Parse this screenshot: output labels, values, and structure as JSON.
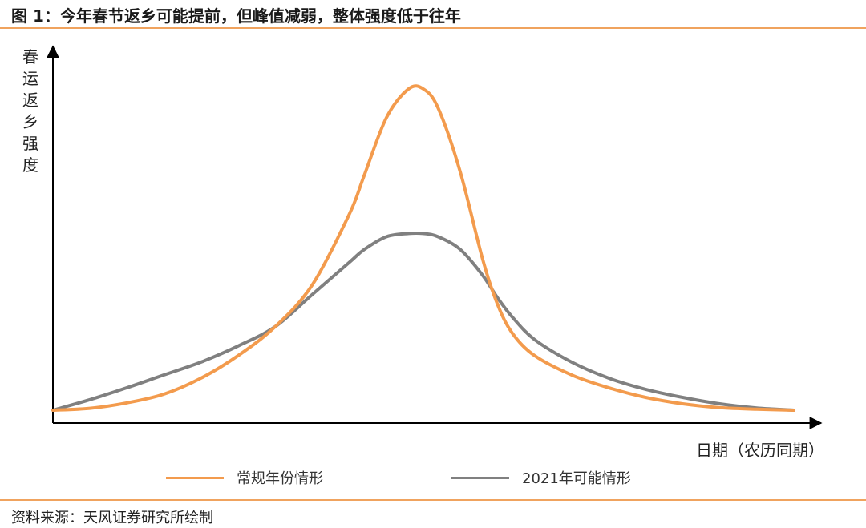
{
  "figure": {
    "title": "图 1：今年春节返乡可能提前，但峰值减弱，整体强度低于往年",
    "source": "资料来源：天风证券研究所绘制"
  },
  "colors": {
    "accent_rule": "#f0a35e",
    "series_normal": "#f39b4d",
    "series_2021": "#808080"
  },
  "chart_data": {
    "type": "line",
    "title": "",
    "xlabel": "日期（农历同期）",
    "ylabel": "春运返乡强度",
    "grid": false,
    "ticks": false,
    "legend": "bottom",
    "xlim": [
      0,
      100
    ],
    "ylim": [
      0,
      100
    ],
    "series": [
      {
        "name": "常规年份情形",
        "color": "#f39b4d",
        "x": [
          0,
          5,
          10,
          15,
          20,
          25,
          30,
          35,
          40,
          42,
          45,
          48,
          50,
          52,
          55,
          58,
          60,
          62,
          65,
          70,
          75,
          80,
          85,
          90,
          95,
          100
        ],
        "y": [
          0,
          0.6,
          2.3,
          5,
          10,
          17,
          26,
          39,
          61,
          73,
          91,
          100,
          100,
          94,
          74,
          47,
          33,
          24,
          17,
          11,
          7,
          4,
          2,
          0.8,
          0.3,
          0
        ]
      },
      {
        "name": "2021年可能情形",
        "color": "#808080",
        "x": [
          0,
          5,
          10,
          15,
          20,
          25,
          30,
          35,
          40,
          42,
          45,
          48,
          50,
          52,
          55,
          58,
          60,
          62,
          65,
          70,
          75,
          80,
          85,
          90,
          95,
          100
        ],
        "y": [
          0,
          3.3,
          7,
          11,
          15,
          20,
          26,
          36,
          46,
          50,
          54,
          55,
          55,
          54,
          50,
          42,
          35,
          29,
          22,
          15,
          10,
          6.5,
          4,
          2,
          0.7,
          0
        ]
      }
    ]
  }
}
